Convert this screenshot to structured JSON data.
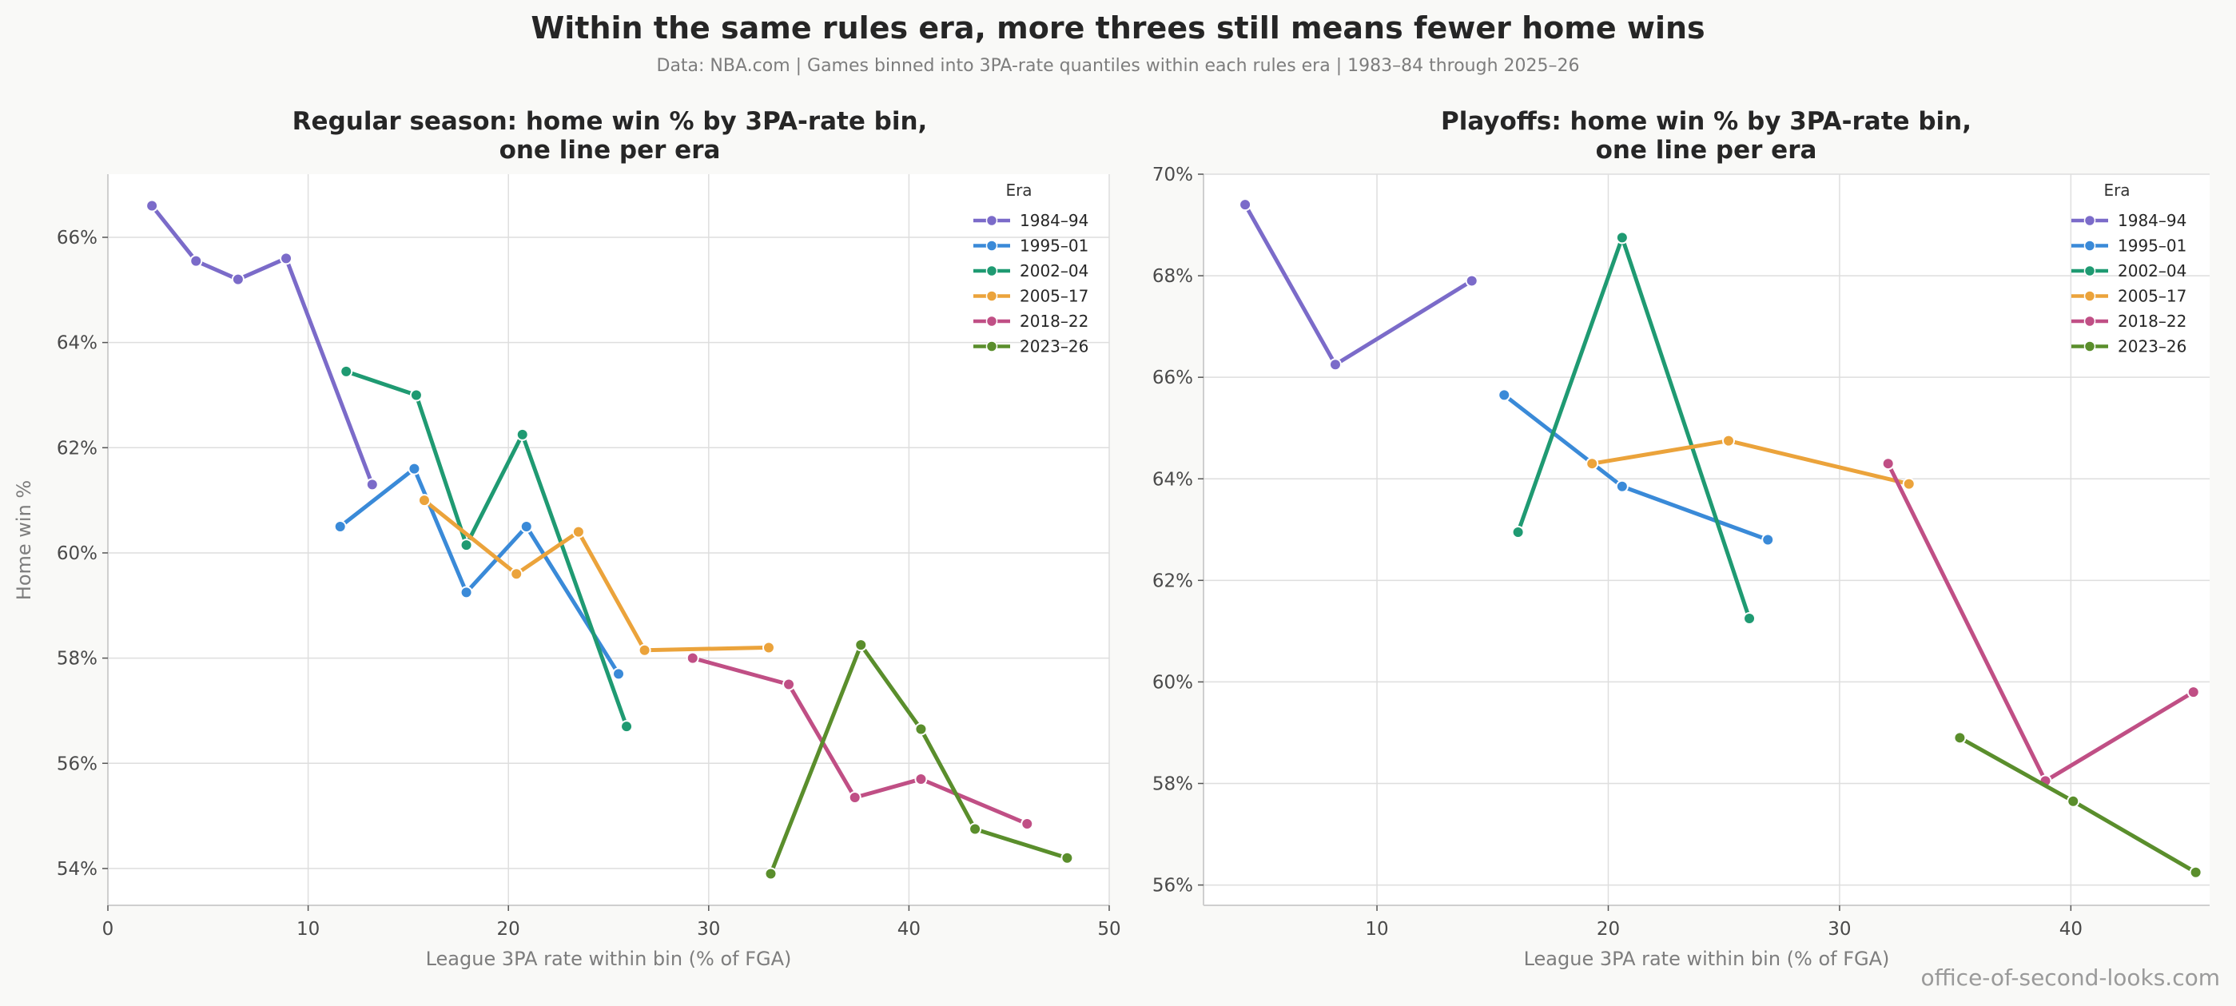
{
  "title": "Within the same rules era, more threes still means fewer home wins",
  "subtitle": "Data: NBA.com  |  Games binned into 3PA-rate quantiles within each rules era  |  1983–84 through 2025–26",
  "watermark": "office-of-second-looks.com",
  "colors": {
    "1984–94": "#7b6bc9",
    "1995–01": "#3a8ad8",
    "2002–04": "#1f9a72",
    "2005–17": "#eba33b",
    "2018–22": "#c04f85",
    "2023–26": "#5a8e2c"
  },
  "chart_data": [
    {
      "type": "line",
      "title_lines": [
        "Regular season: home win % by 3PA-rate bin,",
        "one line per era"
      ],
      "xlabel": "League 3PA rate within bin (% of FGA)",
      "ylabel": "Home win %",
      "xlim": [
        0,
        50
      ],
      "ylim": [
        53.3,
        67.2
      ],
      "xticks": [
        0,
        10,
        20,
        30,
        40,
        50
      ],
      "yticks": [
        54,
        56,
        58,
        60,
        62,
        64,
        66
      ],
      "ytick_labels": [
        "54%",
        "56%",
        "58%",
        "60%",
        "62%",
        "64%",
        "66%"
      ],
      "grid": true,
      "legend": {
        "title": "Era",
        "position": "top-right"
      },
      "series": [
        {
          "name": "1984–94",
          "points": [
            [
              2.2,
              66.6
            ],
            [
              4.4,
              65.55
            ],
            [
              6.5,
              65.2
            ],
            [
              8.9,
              65.6
            ],
            [
              13.2,
              61.3
            ]
          ]
        },
        {
          "name": "1995–01",
          "points": [
            [
              11.6,
              60.5
            ],
            [
              15.3,
              61.6
            ],
            [
              17.9,
              59.25
            ],
            [
              20.9,
              60.5
            ],
            [
              25.5,
              57.7
            ]
          ]
        },
        {
          "name": "2002–04",
          "points": [
            [
              11.9,
              63.45
            ],
            [
              15.4,
              63.0
            ],
            [
              17.9,
              60.15
            ],
            [
              20.7,
              62.25
            ],
            [
              25.9,
              56.7
            ]
          ]
        },
        {
          "name": "2005–17",
          "points": [
            [
              15.8,
              61.0
            ],
            [
              20.4,
              59.6
            ],
            [
              23.5,
              60.4
            ],
            [
              26.8,
              58.15
            ],
            [
              33.0,
              58.2
            ]
          ]
        },
        {
          "name": "2018–22",
          "points": [
            [
              29.2,
              58.0
            ],
            [
              34.0,
              57.5
            ],
            [
              37.3,
              55.35
            ],
            [
              40.6,
              55.7
            ],
            [
              45.9,
              54.85
            ]
          ]
        },
        {
          "name": "2023–26",
          "points": [
            [
              33.1,
              53.9
            ],
            [
              37.6,
              58.25
            ],
            [
              40.6,
              56.65
            ],
            [
              43.3,
              54.75
            ],
            [
              47.9,
              54.2
            ]
          ]
        }
      ]
    },
    {
      "type": "line",
      "title_lines": [
        "Playoffs: home win % by 3PA-rate bin,",
        "one line per era"
      ],
      "xlabel": "League 3PA rate within bin (% of FGA)",
      "ylabel": "",
      "xlim": [
        2.5,
        46
      ],
      "ylim": [
        55.6,
        70.0
      ],
      "xticks": [
        10,
        20,
        30,
        40
      ],
      "yticks": [
        56,
        58,
        60,
        62,
        64,
        66,
        68,
        70
      ],
      "ytick_labels": [
        "56%",
        "58%",
        "60%",
        "62%",
        "64%",
        "66%",
        "68%",
        "70%"
      ],
      "grid": true,
      "legend": {
        "title": "Era",
        "position": "top-right"
      },
      "series": [
        {
          "name": "1984–94",
          "points": [
            [
              4.3,
              69.4
            ],
            [
              8.2,
              66.25
            ],
            [
              14.1,
              67.9
            ]
          ]
        },
        {
          "name": "1995–01",
          "points": [
            [
              15.5,
              65.65
            ],
            [
              20.6,
              63.85
            ],
            [
              26.9,
              62.8
            ]
          ]
        },
        {
          "name": "2002–04",
          "points": [
            [
              16.1,
              62.95
            ],
            [
              20.6,
              68.75
            ],
            [
              26.1,
              61.25
            ]
          ]
        },
        {
          "name": "2005–17",
          "points": [
            [
              19.3,
              64.3
            ],
            [
              25.2,
              64.75
            ],
            [
              33.0,
              63.9
            ]
          ]
        },
        {
          "name": "2018–22",
          "points": [
            [
              32.1,
              64.3
            ],
            [
              38.9,
              58.05
            ],
            [
              45.3,
              59.8
            ]
          ]
        },
        {
          "name": "2023–26",
          "points": [
            [
              35.2,
              58.9
            ],
            [
              40.1,
              57.65
            ],
            [
              45.4,
              56.25
            ]
          ]
        }
      ]
    }
  ]
}
